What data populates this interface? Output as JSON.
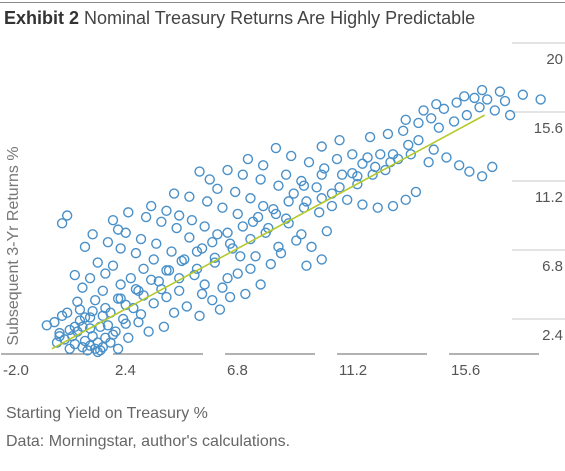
{
  "header": {
    "exhibit": "Exhibit 2",
    "title": "Nominal Treasury Returns Are Highly Predictable"
  },
  "footer": {
    "xlabel": "Starting Yield on Treasury %",
    "source": "Data: Morningstar, author's calculations."
  },
  "colors": {
    "points": "#4a90c8",
    "trendline": "#b5c92a",
    "grid": "#c8c8c8",
    "axis": "#666666"
  },
  "chart_data": {
    "type": "scatter",
    "title": "Nominal Treasury Returns Are Highly Predictable",
    "xlabel": "Starting Yield on Treasury %",
    "ylabel": "Subsequent 3-Yr Returns %",
    "xlim": [
      -2.0,
      18.0
    ],
    "ylim": [
      0.0,
      22.0
    ],
    "xticks": [
      -2.0,
      2.4,
      6.8,
      11.2,
      15.6
    ],
    "xtick_labels": [
      "-2.0",
      "2.4",
      "6.8",
      "11.2",
      "15.6"
    ],
    "yticks": [
      2.4,
      6.8,
      11.2,
      15.6,
      20
    ],
    "ytick_labels": [
      "2.4",
      "6.8",
      "11.2",
      "15.6",
      "20"
    ],
    "grid": true,
    "trendline": {
      "x": [
        0.0,
        17.0
      ],
      "y": [
        0.5,
        15.4
      ]
    },
    "series": [
      {
        "values": [
          [
            -0.2,
            2.0
          ],
          [
            0.1,
            2.2
          ],
          [
            0.3,
            1.5
          ],
          [
            0.5,
            1.1
          ],
          [
            0.6,
            2.8
          ],
          [
            0.8,
            1.3
          ],
          [
            0.9,
            0.8
          ],
          [
            1.0,
            1.6
          ],
          [
            1.1,
            2.3
          ],
          [
            1.2,
            0.6
          ],
          [
            1.3,
            1.0
          ],
          [
            1.4,
            0.4
          ],
          [
            1.5,
            0.7
          ],
          [
            1.6,
            1.3
          ],
          [
            1.7,
            0.5
          ],
          [
            1.8,
            0.9
          ],
          [
            1.9,
            0.4
          ],
          [
            2.0,
            0.6
          ],
          [
            2.1,
            1.2
          ],
          [
            1.5,
            1.8
          ],
          [
            1.1,
            3.0
          ],
          [
            0.4,
            2.6
          ],
          [
            0.7,
            1.7
          ],
          [
            1.3,
            2.5
          ],
          [
            1.0,
            3.5
          ],
          [
            1.6,
            2.9
          ],
          [
            2.2,
            2.0
          ],
          [
            2.5,
            1.6
          ],
          [
            2.8,
            2.4
          ],
          [
            3.0,
            1.2
          ],
          [
            3.2,
            3.1
          ],
          [
            2.6,
            3.7
          ],
          [
            2.0,
            4.2
          ],
          [
            1.2,
            4.4
          ],
          [
            1.7,
            3.6
          ],
          [
            2.3,
            2.8
          ],
          [
            2.9,
            2.1
          ],
          [
            3.5,
            2.7
          ],
          [
            3.8,
            1.6
          ],
          [
            4.0,
            3.4
          ],
          [
            3.4,
            4.2
          ],
          [
            2.7,
            4.6
          ],
          [
            2.1,
            5.3
          ],
          [
            1.5,
            5.0
          ],
          [
            0.9,
            5.2
          ],
          [
            1.8,
            6.0
          ],
          [
            2.4,
            5.8
          ],
          [
            3.1,
            5.0
          ],
          [
            3.6,
            5.6
          ],
          [
            4.2,
            4.8
          ],
          [
            4.5,
            3.8
          ],
          [
            4.8,
            2.8
          ],
          [
            5.0,
            4.2
          ],
          [
            4.6,
            5.5
          ],
          [
            4.0,
            6.2
          ],
          [
            3.3,
            6.6
          ],
          [
            2.7,
            6.9
          ],
          [
            2.2,
            7.3
          ],
          [
            1.6,
            7.8
          ],
          [
            0.4,
            8.5
          ],
          [
            0.6,
            9.0
          ],
          [
            1.3,
            7.0
          ],
          [
            2.9,
            7.9
          ],
          [
            3.5,
            7.5
          ],
          [
            4.1,
            7.2
          ],
          [
            4.7,
            6.7
          ],
          [
            5.2,
            6.2
          ],
          [
            5.6,
            5.2
          ],
          [
            6.0,
            4.6
          ],
          [
            6.3,
            3.6
          ],
          [
            5.8,
            2.6
          ],
          [
            6.6,
            3.0
          ],
          [
            7.0,
            3.8
          ],
          [
            6.9,
            5.0
          ],
          [
            6.4,
            6.0
          ],
          [
            5.9,
            6.9
          ],
          [
            5.4,
            7.6
          ],
          [
            4.9,
            8.2
          ],
          [
            4.3,
            8.6
          ],
          [
            3.7,
            8.9
          ],
          [
            3.0,
            9.2
          ],
          [
            2.4,
            8.7
          ],
          [
            2.6,
            8.1
          ],
          [
            3.9,
            9.6
          ],
          [
            4.5,
            9.3
          ],
          [
            5.0,
            9.0
          ],
          [
            5.5,
            8.7
          ],
          [
            6.0,
            8.3
          ],
          [
            6.5,
            7.8
          ],
          [
            7.0,
            7.2
          ],
          [
            7.4,
            6.4
          ],
          [
            7.8,
            5.6
          ],
          [
            8.2,
            4.6
          ],
          [
            7.6,
            4.0
          ],
          [
            8.6,
            5.9
          ],
          [
            8.9,
            7.0
          ],
          [
            8.4,
            7.9
          ],
          [
            7.9,
            8.6
          ],
          [
            7.3,
            9.1
          ],
          [
            6.7,
            9.5
          ],
          [
            6.1,
            9.9
          ],
          [
            5.4,
            10.2
          ],
          [
            4.8,
            10.4
          ],
          [
            6.5,
            10.7
          ],
          [
            7.2,
            10.5
          ],
          [
            7.8,
            10.1
          ],
          [
            8.3,
            9.6
          ],
          [
            8.8,
            9.1
          ],
          [
            9.3,
            8.5
          ],
          [
            9.8,
            7.8
          ],
          [
            10.2,
            7.0
          ],
          [
            10.6,
            6.2
          ],
          [
            10.0,
            5.8
          ],
          [
            10.8,
            8.0
          ],
          [
            10.5,
            9.2
          ],
          [
            10.0,
            9.9
          ],
          [
            9.5,
            10.4
          ],
          [
            8.9,
            10.9
          ],
          [
            8.2,
            11.3
          ],
          [
            7.5,
            11.6
          ],
          [
            6.9,
            11.9
          ],
          [
            9.2,
            11.6
          ],
          [
            9.8,
            11.2
          ],
          [
            10.4,
            10.8
          ],
          [
            11.0,
            10.4
          ],
          [
            11.6,
            10.0
          ],
          [
            12.2,
            9.7
          ],
          [
            12.8,
            9.5
          ],
          [
            13.4,
            9.6
          ],
          [
            13.9,
            10.0
          ],
          [
            14.3,
            10.5
          ],
          [
            12.0,
            11.0
          ],
          [
            11.4,
            11.6
          ],
          [
            10.7,
            12.0
          ],
          [
            10.1,
            12.4
          ],
          [
            9.4,
            12.8
          ],
          [
            8.8,
            13.3
          ],
          [
            10.6,
            13.4
          ],
          [
            11.3,
            13.8
          ],
          [
            12.5,
            14.0
          ],
          [
            13.2,
            14.2
          ],
          [
            13.8,
            14.4
          ],
          [
            14.4,
            13.8
          ],
          [
            15.0,
            13.2
          ],
          [
            15.5,
            12.7
          ],
          [
            16.0,
            12.2
          ],
          [
            16.4,
            11.8
          ],
          [
            16.9,
            11.5
          ],
          [
            17.3,
            12.1
          ],
          [
            15.2,
            14.6
          ],
          [
            15.8,
            15.0
          ],
          [
            16.3,
            15.4
          ],
          [
            16.8,
            15.9
          ],
          [
            17.4,
            15.7
          ],
          [
            18.0,
            15.4
          ],
          [
            17.8,
            16.3
          ],
          [
            16.6,
            16.5
          ],
          [
            15.9,
            16.2
          ],
          [
            15.4,
            15.8
          ],
          [
            14.9,
            15.2
          ],
          [
            14.4,
            14.9
          ],
          [
            13.9,
            15.1
          ],
          [
            14.6,
            15.7
          ],
          [
            15.1,
            16.1
          ],
          [
            16.2,
            16.6
          ],
          [
            17.1,
            16.4
          ],
          [
            16.9,
            17.0
          ],
          [
            17.6,
            16.9
          ],
          [
            18.5,
            16.7
          ],
          [
            19.2,
            16.4
          ],
          [
            13.6,
            12.6
          ],
          [
            14.1,
            12.9
          ],
          [
            14.8,
            12.4
          ],
          [
            12.9,
            12.9
          ],
          [
            13.3,
            12.4
          ],
          [
            12.4,
            12.7
          ],
          [
            11.8,
            12.9
          ],
          [
            11.2,
            12.6
          ],
          [
            10.6,
            11.6
          ],
          [
            9.9,
            10.9
          ],
          [
            9.3,
            9.9
          ],
          [
            8.7,
            9.4
          ],
          [
            8.1,
            8.9
          ],
          [
            7.5,
            8.3
          ],
          [
            6.9,
            7.9
          ],
          [
            6.3,
            7.3
          ],
          [
            5.7,
            6.7
          ],
          [
            5.1,
            6.1
          ],
          [
            4.5,
            5.5
          ],
          [
            3.9,
            4.9
          ],
          [
            3.3,
            4.3
          ],
          [
            2.7,
            3.7
          ],
          [
            2.1,
            3.1
          ],
          [
            1.5,
            2.5
          ],
          [
            0.9,
            1.9
          ],
          [
            0.3,
            1.3
          ],
          [
            2.6,
            0.5
          ],
          [
            2.3,
            0.9
          ],
          [
            1.9,
            1.9
          ],
          [
            2.9,
            3.3
          ],
          [
            3.6,
            3.9
          ],
          [
            4.3,
            4.3
          ],
          [
            5.0,
            5.0
          ],
          [
            5.7,
            5.6
          ],
          [
            6.4,
            6.3
          ],
          [
            7.1,
            6.9
          ],
          [
            7.8,
            7.5
          ],
          [
            8.5,
            8.2
          ],
          [
            9.2,
            8.8
          ],
          [
            9.9,
            9.5
          ],
          [
            10.6,
            10.1
          ],
          [
            11.3,
            10.8
          ],
          [
            12.0,
            11.5
          ],
          [
            12.7,
            12.1
          ],
          [
            13.4,
            12.9
          ],
          [
            0.2,
            0.9
          ],
          [
            0.7,
            0.5
          ],
          [
            1.2,
            1.9
          ],
          [
            1.8,
            0.3
          ],
          [
            2.4,
            1.4
          ],
          [
            2.0,
            2.6
          ],
          [
            3.4,
            2.2
          ],
          [
            4.4,
            1.9
          ],
          [
            5.3,
            3.2
          ],
          [
            5.9,
            4.0
          ],
          [
            6.7,
            4.4
          ],
          [
            7.3,
            5.3
          ],
          [
            8.0,
            6.4
          ],
          [
            9.0,
            6.6
          ],
          [
            9.6,
            7.4
          ],
          [
            11.8,
            11.7
          ],
          [
            12.6,
            11.6
          ],
          [
            13.1,
            11.9
          ],
          [
            12.2,
            12.3
          ],
          [
            14.0,
            13.5
          ],
          [
            11.0,
            9.6
          ],
          [
            7.7,
            12.6
          ],
          [
            8.3,
            12.2
          ],
          [
            6.2,
            11.3
          ],
          [
            5.8,
            11.8
          ]
        ]
      }
    ]
  }
}
